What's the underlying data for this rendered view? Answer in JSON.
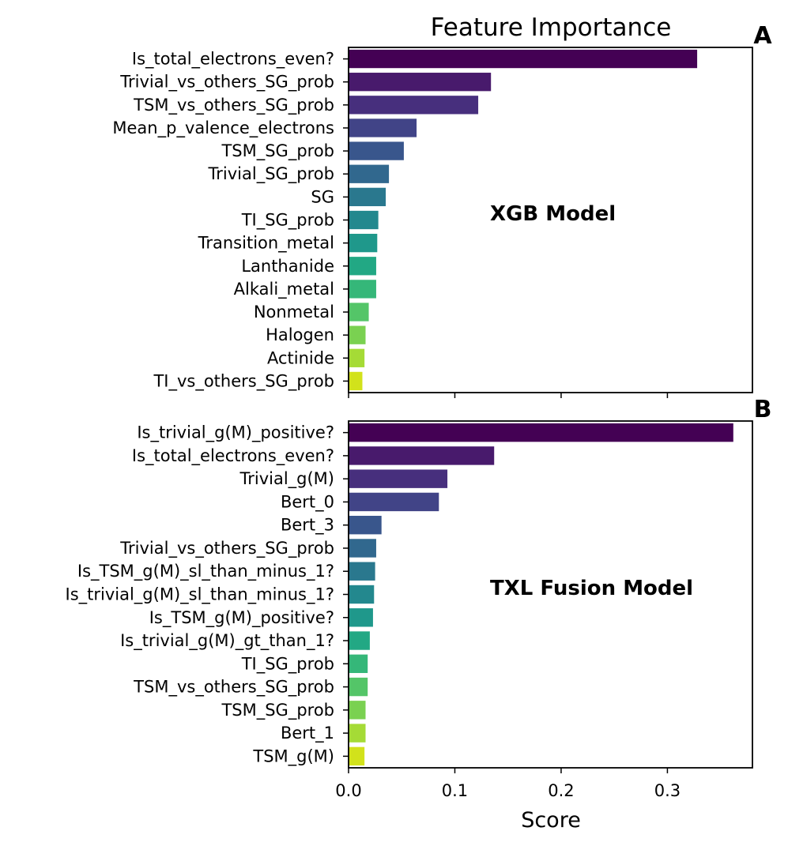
{
  "title": "Feature Importance",
  "xlabel": "Score",
  "xticks": [
    "0.0",
    "0.1",
    "0.2",
    "0.3"
  ],
  "colors": [
    "#440154",
    "#481a6c",
    "#472f7d",
    "#414487",
    "#39568c",
    "#31688e",
    "#2a788e",
    "#23888e",
    "#1f988b",
    "#22a884",
    "#35b779",
    "#54c568",
    "#7ad151",
    "#a5db36",
    "#d2e21b"
  ],
  "chart_data": [
    {
      "type": "bar",
      "orientation": "horizontal",
      "panel_label": "A",
      "model_label": "XGB Model",
      "xlim": [
        0,
        0.38
      ],
      "categories": [
        "Is_total_electrons_even?",
        "Trivial_vs_others_SG_prob",
        "TSM_vs_others_SG_prob",
        "Mean_p_valence_electrons",
        "TSM_SG_prob",
        "Trivial_SG_prob",
        "SG",
        "TI_SG_prob",
        "Transition_metal",
        "Lanthanide",
        "Alkali_metal",
        "Nonmetal",
        "Halogen",
        "Actinide",
        "TI_vs_others_SG_prob"
      ],
      "values": [
        0.328,
        0.134,
        0.122,
        0.064,
        0.052,
        0.038,
        0.035,
        0.028,
        0.027,
        0.026,
        0.026,
        0.019,
        0.016,
        0.015,
        0.013
      ]
    },
    {
      "type": "bar",
      "orientation": "horizontal",
      "panel_label": "B",
      "model_label": "TXL Fusion Model",
      "xlim": [
        0,
        0.38
      ],
      "categories": [
        "Is_trivial_g(M)_positive?",
        "Is_total_electrons_even?",
        "Trivial_g(M)",
        "Bert_0",
        "Bert_3",
        "Trivial_vs_others_SG_prob",
        "Is_TSM_g(M)_sl_than_minus_1?",
        "Is_trivial_g(M)_sl_than_minus_1?",
        "Is_TSM_g(M)_positive?",
        "Is_trivial_g(M)_gt_than_1?",
        "TI_SG_prob",
        "TSM_vs_others_SG_prob",
        "TSM_SG_prob",
        "Bert_1",
        "TSM_g(M)"
      ],
      "values": [
        0.362,
        0.137,
        0.093,
        0.085,
        0.031,
        0.026,
        0.025,
        0.024,
        0.023,
        0.02,
        0.018,
        0.018,
        0.016,
        0.016,
        0.015
      ]
    }
  ]
}
